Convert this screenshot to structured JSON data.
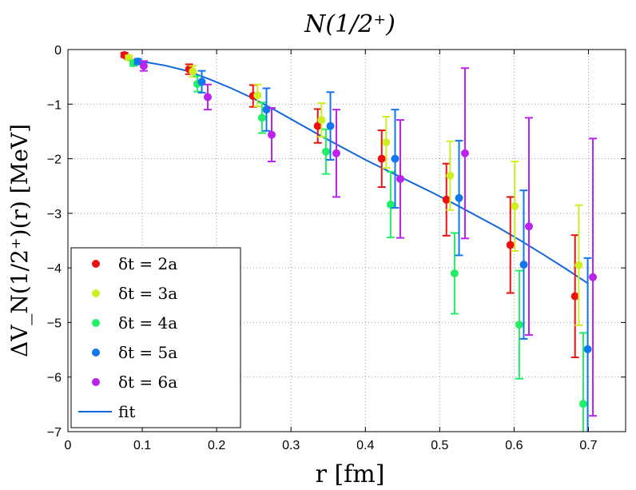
{
  "chart_data": {
    "type": "scatter",
    "title": "N(1/2⁺)",
    "xlabel": "r [fm]",
    "ylabel": "ΔV_N(1/2⁺)(r) [MeV]",
    "xlim": [
      0,
      0.75
    ],
    "ylim": [
      -7,
      0
    ],
    "xticks": [
      0,
      0.1,
      0.2,
      0.3,
      0.4,
      0.5,
      0.6,
      0.7
    ],
    "yticks": [
      0,
      -1,
      -2,
      -3,
      -4,
      -5,
      -6,
      -7
    ],
    "xtick_labels": [
      "0",
      "0.1",
      "0.2",
      "0.3",
      "0.4",
      "0.5",
      "0.6",
      "0.7"
    ],
    "ytick_labels": [
      "0",
      "−1",
      "−2",
      "−3",
      "−4",
      "−5",
      "−6",
      "−7"
    ],
    "grid": true,
    "legend_position": "bottom-left",
    "series": [
      {
        "name": "δt = 2a",
        "color": "#ee1010",
        "x": [
          0.076,
          0.163,
          0.249,
          0.336,
          0.422,
          0.509,
          0.595,
          0.682
        ],
        "y": [
          -0.1,
          -0.36,
          -0.85,
          -1.4,
          -2.0,
          -2.75,
          -3.58,
          -4.52
        ],
        "err": [
          0.04,
          0.09,
          0.2,
          0.31,
          0.52,
          0.66,
          0.88,
          1.12
        ]
      },
      {
        "name": "δt = 3a",
        "color": "#ccee22",
        "x": [
          0.082,
          0.168,
          0.255,
          0.341,
          0.428,
          0.514,
          0.601,
          0.687
        ],
        "y": [
          -0.15,
          -0.4,
          -0.84,
          -1.29,
          -1.7,
          -2.31,
          -2.87,
          -3.95
        ],
        "err": [
          0.04,
          0.1,
          0.2,
          0.31,
          0.47,
          0.63,
          0.82,
          1.1
        ]
      },
      {
        "name": "δt = 4a",
        "color": "#22ee66",
        "x": [
          0.088,
          0.174,
          0.261,
          0.347,
          0.434,
          0.52,
          0.607,
          0.693
        ],
        "y": [
          -0.25,
          -0.63,
          -1.25,
          -1.87,
          -2.84,
          -4.1,
          -5.04,
          -6.49
        ],
        "err": [
          0.05,
          0.14,
          0.28,
          0.41,
          0.6,
          0.74,
          0.99,
          1.3
        ]
      },
      {
        "name": "δt = 5a",
        "color": "#1177ee",
        "x": [
          0.094,
          0.18,
          0.267,
          0.353,
          0.44,
          0.526,
          0.613,
          0.699
        ],
        "y": [
          -0.22,
          -0.59,
          -1.1,
          -1.4,
          -2.0,
          -2.72,
          -3.94,
          -5.49
        ],
        "err": [
          0.05,
          0.2,
          0.39,
          0.62,
          0.9,
          1.05,
          1.36,
          1.67
        ]
      },
      {
        "name": "δt = 6a",
        "color": "#bb22ee",
        "x": [
          0.102,
          0.188,
          0.274,
          0.361,
          0.447,
          0.534,
          0.62,
          0.706
        ],
        "y": [
          -0.3,
          -0.87,
          -1.56,
          -1.9,
          -2.37,
          -1.9,
          -3.24,
          -4.17
        ],
        "err": [
          0.09,
          0.23,
          0.49,
          0.8,
          1.08,
          1.56,
          1.99,
          2.54
        ]
      }
    ],
    "fit": {
      "name": "fit",
      "color": "#1166dd",
      "x": [
        0.076,
        0.1,
        0.13,
        0.16,
        0.19,
        0.22,
        0.25,
        0.28,
        0.31,
        0.34,
        0.37,
        0.4,
        0.43,
        0.46,
        0.49,
        0.52,
        0.55,
        0.58,
        0.61,
        0.64,
        0.67,
        0.7
      ],
      "y": [
        -0.18,
        -0.22,
        -0.29,
        -0.39,
        -0.54,
        -0.71,
        -0.9,
        -1.12,
        -1.35,
        -1.58,
        -1.8,
        -2.02,
        -2.22,
        -2.42,
        -2.62,
        -2.83,
        -3.05,
        -3.27,
        -3.51,
        -3.76,
        -4.02,
        -4.29
      ]
    }
  }
}
